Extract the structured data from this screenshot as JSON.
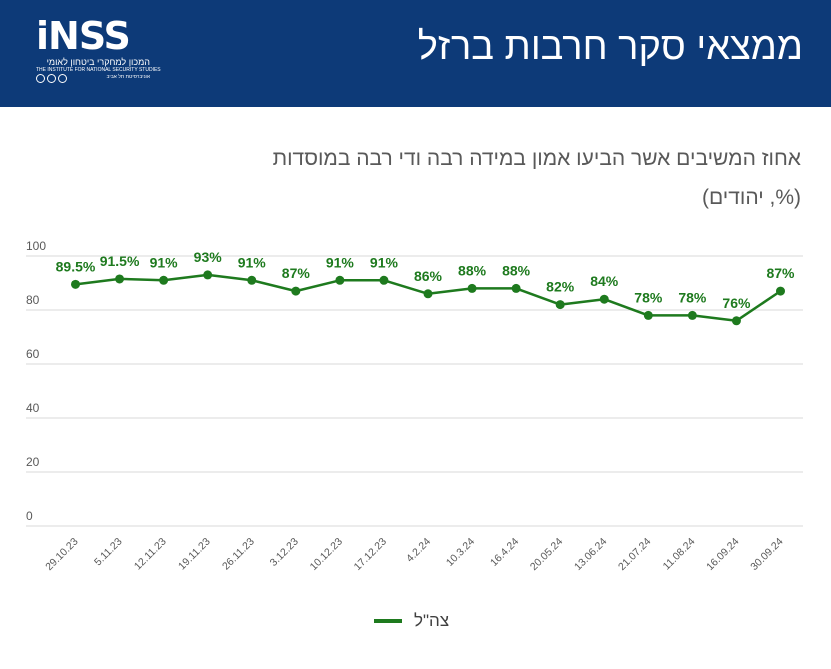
{
  "header": {
    "title": "ממצאי סקר חרבות ברזל",
    "logo": {
      "word": "iNSS",
      "hebrew": "המכון למחקרי ביטחון לאומי",
      "english": "THE INSTITUTE FOR NATIONAL SECURITY STUDIES",
      "university": "אוניברסיטת תל אביב"
    }
  },
  "colors": {
    "header_bg": "#0d3a78",
    "series": "#1e7a1e",
    "grid": "#d9d9d9",
    "text": "#595959"
  },
  "chart_data": {
    "type": "line",
    "title": "אחוז המשיבים אשר הביעו אמון במידה רבה ודי רבה במוסדות",
    "subtitle": "(%, יהודים)",
    "categories": [
      "29.10.23",
      "5.11.23",
      "12.11.23",
      "19.11.23",
      "26.11.23",
      "3.12.23",
      "10.12.23",
      "17.12.23",
      "4.2.24",
      "10.3.24",
      "16.4.24",
      "20.05.24",
      "13.06.24",
      "21.07.24",
      "11.08.24",
      "16.09.24",
      "30.09.24"
    ],
    "series": [
      {
        "name": "צה\"ל",
        "values": [
          89.5,
          91.5,
          91,
          93,
          91,
          87,
          91,
          91,
          86,
          88,
          88,
          82,
          84,
          78,
          78,
          76,
          87
        ],
        "labels": [
          "89.5%",
          "91.5%",
          "91%",
          "93%",
          "91%",
          "87%",
          "91%",
          "91%",
          "86%",
          "88%",
          "88%",
          "82%",
          "84%",
          "78%",
          "78%",
          "76%",
          "87%"
        ]
      }
    ],
    "ylim": [
      0,
      100
    ],
    "yticks": [
      "0",
      "20",
      "40",
      "60",
      "80",
      "100"
    ],
    "grid": true,
    "legend": "bottom-center"
  }
}
